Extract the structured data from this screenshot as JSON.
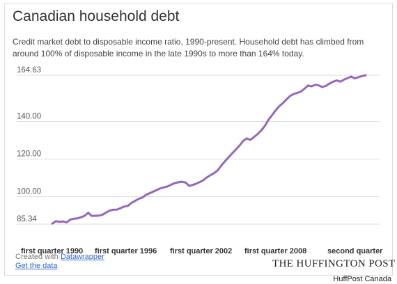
{
  "chart_data": {
    "type": "line",
    "title": "Canadian household debt",
    "subtitle": "Credit market debt to disposable income ratio, 1990-present. Household debt has climbed from around 100% of disposable income in the late 1990s to more than 164% today.",
    "y_ticks": [
      "164.63",
      "140.00",
      "120.00",
      "100.00",
      "85.34"
    ],
    "y_tick_values": [
      164.63,
      140.0,
      120.0,
      100.0,
      85.34
    ],
    "x_ticks": [
      "first quarter 1990",
      "first quarter 1996",
      "first quarter 2002",
      "first quarter 2008",
      "second quarter"
    ],
    "ylim": [
      85.34,
      164.63
    ],
    "grid": true,
    "series": [
      {
        "color": "#9467bd",
        "values": [
          85.6,
          86.9,
          86.6,
          86.8,
          86.3,
          87.8,
          88.2,
          88.4,
          89.0,
          89.8,
          91.4,
          89.7,
          89.8,
          89.9,
          90.4,
          91.6,
          92.6,
          93.0,
          93.1,
          93.9,
          94.7,
          95.1,
          96.6,
          97.7,
          98.8,
          99.5,
          100.9,
          101.8,
          102.6,
          103.5,
          104.4,
          104.9,
          105.4,
          106.3,
          107.2,
          107.6,
          107.9,
          107.5,
          105.7,
          106.2,
          106.9,
          107.8,
          108.8,
          110.3,
          111.5,
          112.6,
          114.1,
          116.7,
          118.9,
          121.0,
          123.1,
          125.1,
          127.2,
          129.6,
          131.0,
          130.2,
          131.7,
          133.3,
          135.2,
          137.6,
          140.8,
          143.3,
          145.9,
          148.1,
          149.7,
          151.7,
          153.5,
          154.6,
          155.2,
          155.9,
          157.4,
          159.1,
          158.7,
          159.5,
          159.2,
          158.3,
          159.0,
          160.2,
          161.2,
          161.8,
          161.2,
          162.3,
          163.1,
          163.9,
          162.9,
          163.6,
          164.1,
          164.63
        ]
      }
    ]
  },
  "credit": {
    "created_with": "Created with",
    "tool_link": "Datawrapper",
    "get_data": "Get the data"
  },
  "brand": "THE HUFFINGTON POST",
  "footer": "HuffPost Canada"
}
